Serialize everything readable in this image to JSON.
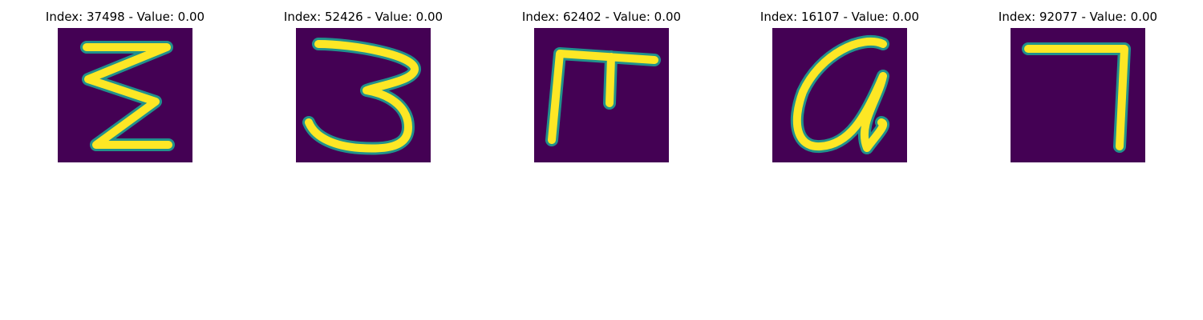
{
  "figure": {
    "background_color": "#ffffff",
    "colormap": {
      "low": "#440154",
      "mid": "#21918c",
      "high": "#fde725"
    },
    "panels": [
      {
        "title": "Index: 37498 - Value: 0.00",
        "glyph": "z-like handwritten character"
      },
      {
        "title": "Index: 52426 - Value: 0.00",
        "glyph": "handwritten 3"
      },
      {
        "title": "Index: 62402 - Value: 0.00",
        "glyph": "handwritten r-like character"
      },
      {
        "title": "Index: 16107 - Value: 0.00",
        "glyph": "handwritten a-like character"
      },
      {
        "title": "Index: 92077 - Value: 0.00",
        "glyph": "handwritten 7"
      }
    ]
  }
}
